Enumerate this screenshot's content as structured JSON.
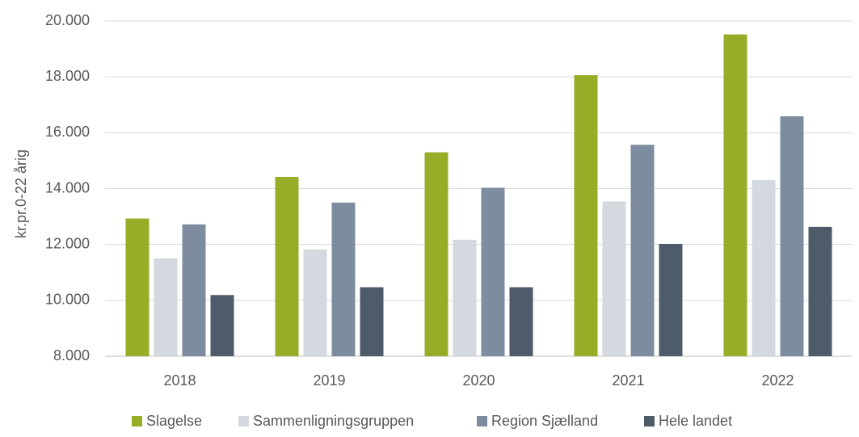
{
  "chart_data": {
    "type": "bar",
    "ylabel": "kr.pr.0-22 årig",
    "xlabel": "",
    "ylim": [
      8000,
      20000
    ],
    "y_ticks": [
      8000,
      10000,
      12000,
      14000,
      16000,
      18000,
      20000
    ],
    "y_tick_labels": [
      "8.000",
      "10.000",
      "12.000",
      "14.000",
      "16.000",
      "18.000",
      "20.000"
    ],
    "grid": true,
    "legend_position": "bottom",
    "categories": [
      "2018",
      "2019",
      "2020",
      "2021",
      "2022"
    ],
    "series": [
      {
        "name": "Slagelse",
        "color": "#95AD27",
        "values": [
          12930,
          14420,
          15300,
          18060,
          19520
        ]
      },
      {
        "name": "Sammenligningsgruppen",
        "color": "#D3D9DE",
        "values": [
          11500,
          11820,
          12170,
          13540,
          14310
        ]
      },
      {
        "name": "Region Sjælland",
        "color": "#7D8C9E",
        "values": [
          12720,
          13500,
          14030,
          15570,
          16590
        ]
      },
      {
        "name": "Hele landet",
        "color": "#4E5B69",
        "values": [
          10190,
          10470,
          10470,
          12020,
          12630
        ]
      }
    ]
  }
}
